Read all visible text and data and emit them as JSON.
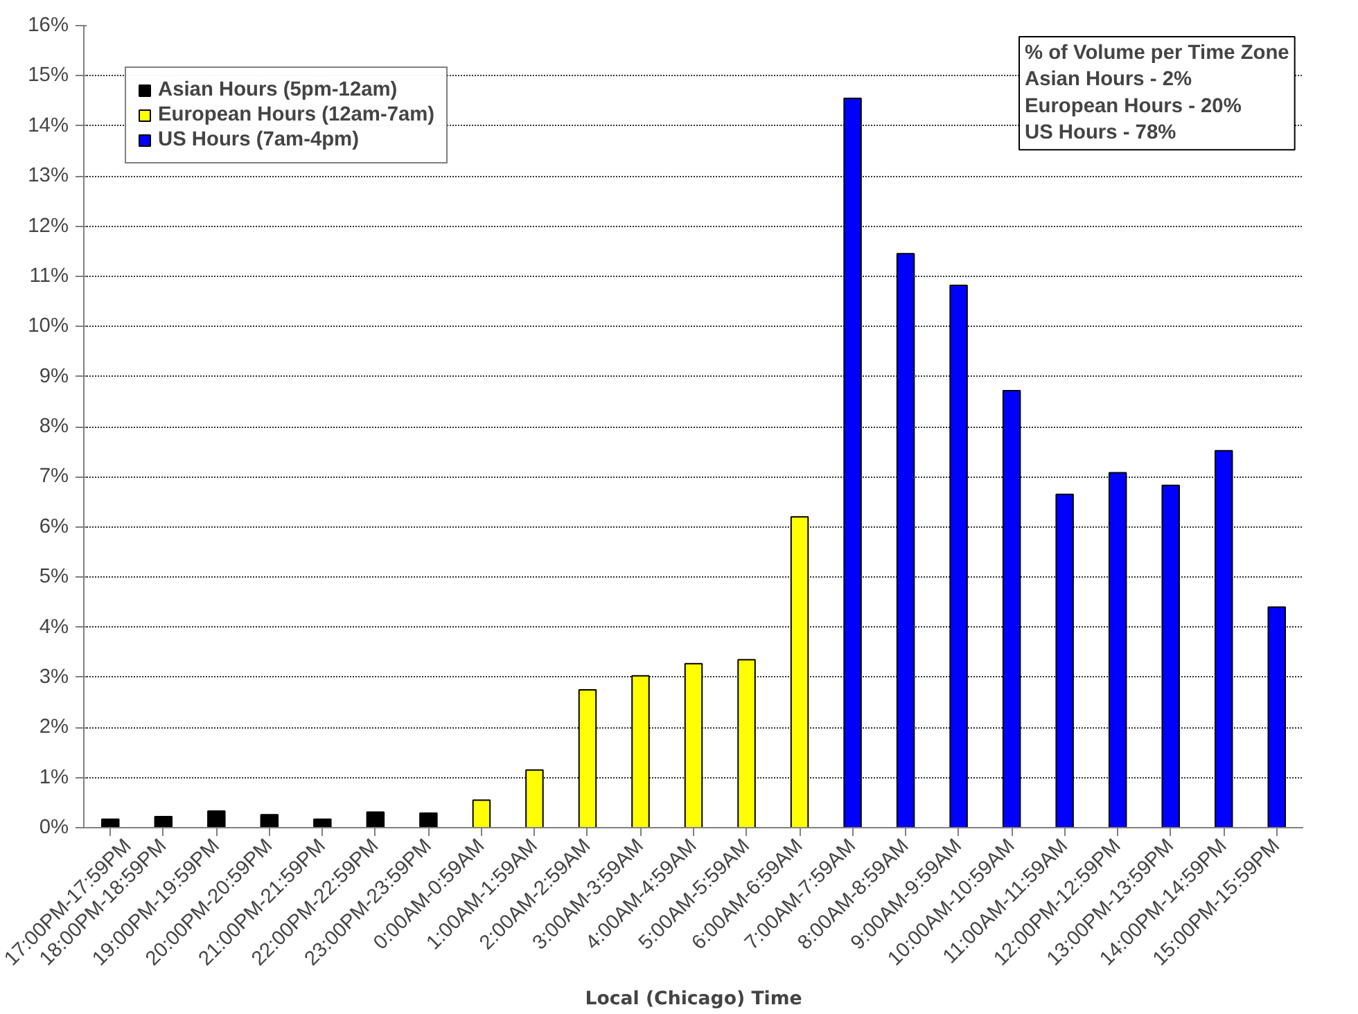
{
  "chart_data": {
    "type": "bar",
    "xlabel": "Local (Chicago) Time",
    "categories": [
      "17:00PM-17:59PM",
      "18:00PM-18:59PM",
      "19:00PM-19:59PM",
      "20:00PM-20:59PM",
      "21:00PM-21:59PM",
      "22:00PM-22:59PM",
      "23:00PM-23:59PM",
      "0:00AM-0:59AM",
      "1:00AM-1:59AM",
      "2:00AM-2:59AM",
      "3:00AM-3:59AM",
      "4:00AM-4:59AM",
      "5:00AM-5:59AM",
      "6:00AM-6:59AM",
      "7:00AM-7:59AM",
      "8:00AM-8:59AM",
      "9:00AM-9:59AM",
      "10:00AM-10:59AM",
      "11:00AM-11:59AM",
      "12:00PM-12:59PM",
      "13:00PM-13:59PM",
      "14:00PM-14:59PM",
      "15:00PM-15:59PM"
    ],
    "series": [
      {
        "name": "Asian Hours (5pm-12am)",
        "color": "#000000",
        "values": [
          0.17,
          0.22,
          0.33,
          0.26,
          0.17,
          0.31,
          0.29,
          null,
          null,
          null,
          null,
          null,
          null,
          null,
          null,
          null,
          null,
          null,
          null,
          null,
          null,
          null,
          null
        ]
      },
      {
        "name": "European Hours (12am-7am)",
        "color": "#ffff00",
        "values": [
          null,
          null,
          null,
          null,
          null,
          null,
          null,
          0.55,
          1.15,
          2.75,
          3.03,
          3.27,
          3.35,
          6.2,
          null,
          null,
          null,
          null,
          null,
          null,
          null,
          null,
          null
        ]
      },
      {
        "name": "US Hours (7am-4pm)",
        "color": "#0000ff",
        "values": [
          null,
          null,
          null,
          null,
          null,
          null,
          null,
          null,
          null,
          null,
          null,
          null,
          null,
          null,
          14.55,
          11.45,
          10.82,
          8.72,
          6.65,
          7.08,
          6.83,
          7.52,
          4.4
        ]
      }
    ],
    "ylim": [
      0,
      16
    ],
    "yticks": [
      {
        "value": 0,
        "label": "0%"
      },
      {
        "value": 1,
        "label": "1%"
      },
      {
        "value": 2,
        "label": "2%"
      },
      {
        "value": 3,
        "label": "3%"
      },
      {
        "value": 4,
        "label": "4%"
      },
      {
        "value": 5,
        "label": "5%"
      },
      {
        "value": 6,
        "label": "6%"
      },
      {
        "value": 7,
        "label": "7%"
      },
      {
        "value": 8,
        "label": "8%"
      },
      {
        "value": 9,
        "label": "9%"
      },
      {
        "value": 10,
        "label": "10%"
      },
      {
        "value": 11,
        "label": "11%"
      },
      {
        "value": 12,
        "label": "12%"
      },
      {
        "value": 13,
        "label": "13%"
      },
      {
        "value": 14,
        "label": "14%"
      },
      {
        "value": 15,
        "label": "15%"
      },
      {
        "value": 16,
        "label": "16%"
      }
    ],
    "grid": "y",
    "legend": "top left",
    "annotations": [
      "% of Volume per Time Zone",
      "Asian Hours - 2%",
      "European Hours - 20%",
      "US Hours - 78%"
    ]
  }
}
